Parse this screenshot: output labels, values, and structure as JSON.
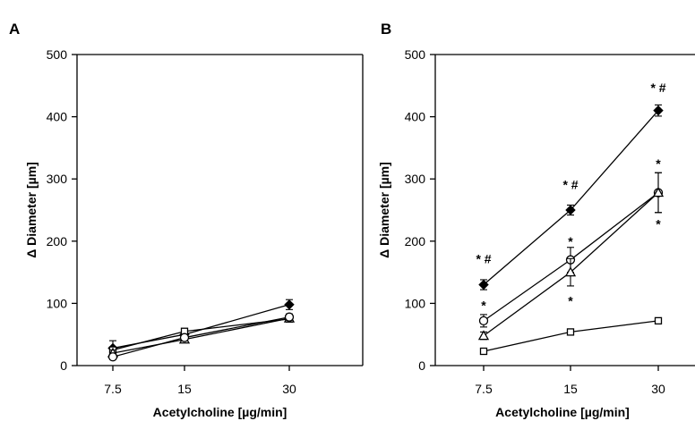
{
  "chart_data": [
    {
      "type": "line",
      "panel_label": "A",
      "xlabel": "Acetylcholine [µg/min]",
      "ylabel": "Δ Diameter [µm]",
      "categories": [
        "7.5",
        "15",
        "30"
      ],
      "yticks": [
        "0",
        "100",
        "200",
        "300",
        "400",
        "500"
      ],
      "ylim": [
        0,
        500
      ],
      "series": [
        {
          "marker": "diamond-filled",
          "values": [
            28,
            50,
            98
          ],
          "errors": [
            12,
            5,
            8
          ]
        },
        {
          "marker": "square-open",
          "values": [
            25,
            55,
            75
          ],
          "errors": [
            5,
            4,
            4
          ]
        },
        {
          "marker": "triangle-open",
          "values": [
            20,
            42,
            76
          ],
          "errors": [
            5,
            4,
            4
          ]
        },
        {
          "marker": "circle-open",
          "values": [
            14,
            45,
            78
          ],
          "errors": [
            4,
            4,
            5
          ]
        }
      ],
      "annotations": []
    },
    {
      "type": "line",
      "panel_label": "B",
      "xlabel": "Acetylcholine [µg/min]",
      "ylabel": "Δ Diameter [µm]",
      "categories": [
        "7.5",
        "15",
        "30"
      ],
      "yticks": [
        "0",
        "100",
        "200",
        "300",
        "400",
        "500"
      ],
      "ylim": [
        0,
        500
      ],
      "series": [
        {
          "marker": "diamond-filled",
          "values": [
            130,
            250,
            410
          ],
          "errors": [
            8,
            8,
            9
          ]
        },
        {
          "marker": "circle-open",
          "values": [
            72,
            170,
            278
          ],
          "errors": [
            10,
            20,
            32
          ]
        },
        {
          "marker": "triangle-open",
          "values": [
            48,
            150,
            278
          ],
          "errors": [
            6,
            22,
            32
          ]
        },
        {
          "marker": "square-open",
          "values": [
            23,
            54,
            72
          ],
          "errors": [
            2,
            2,
            2
          ]
        }
      ],
      "annotations": [
        {
          "text": "* #",
          "x": "7.5",
          "y": 172
        },
        {
          "text": "*",
          "x": "7.5",
          "y": 97
        },
        {
          "text": "* #",
          "x": "15",
          "y": 291
        },
        {
          "text": "*",
          "x": "15",
          "y": 200
        },
        {
          "text": "*",
          "x": "15",
          "y": 104
        },
        {
          "text": "* #",
          "x": "30",
          "y": 447
        },
        {
          "text": "*",
          "x": "30",
          "y": 325
        },
        {
          "text": "*",
          "x": "30",
          "y": 228
        }
      ]
    }
  ]
}
